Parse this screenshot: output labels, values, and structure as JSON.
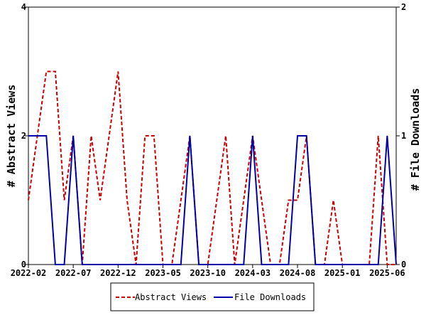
{
  "chart_data": {
    "type": "line",
    "x_tick_labels": [
      "2022-02",
      "2022-07",
      "2022-12",
      "2023-05",
      "2023-10",
      "2024-03",
      "2024-08",
      "2025-01",
      "2025-06"
    ],
    "x": [
      "2022-02",
      "2022-03",
      "2022-04",
      "2022-05",
      "2022-06",
      "2022-07",
      "2022-08",
      "2022-09",
      "2022-10",
      "2022-11",
      "2022-12",
      "2023-01",
      "2023-02",
      "2023-03",
      "2023-04",
      "2023-05",
      "2023-06",
      "2023-07",
      "2023-08",
      "2023-09",
      "2023-10",
      "2023-11",
      "2023-12",
      "2024-01",
      "2024-02",
      "2024-03",
      "2024-04",
      "2024-05",
      "2024-06",
      "2024-07",
      "2024-08",
      "2024-09",
      "2024-10",
      "2024-11",
      "2024-12",
      "2025-01",
      "2025-02",
      "2025-03",
      "2025-04",
      "2025-05",
      "2025-06",
      "2025-07"
    ],
    "series": [
      {
        "name": "Abstract Views",
        "axis": "left",
        "color": "#cc0000",
        "style": "dashed",
        "values": [
          1,
          2,
          3,
          3,
          1,
          2,
          0,
          2,
          1,
          2,
          3,
          1,
          0,
          2,
          2,
          0,
          0,
          1,
          2,
          0,
          0,
          1,
          2,
          0,
          1,
          2,
          1,
          0,
          0,
          1,
          1,
          2,
          0,
          0,
          1,
          0,
          0,
          0,
          0,
          2,
          0,
          0
        ]
      },
      {
        "name": "File Downloads",
        "axis": "right",
        "color": "#0000aa",
        "style": "solid",
        "values": [
          1,
          1,
          1,
          0,
          0,
          1,
          0,
          0,
          0,
          0,
          0,
          0,
          0,
          0,
          0,
          0,
          0,
          0,
          1,
          0,
          0,
          0,
          0,
          0,
          0,
          1,
          0,
          0,
          0,
          0,
          1,
          1,
          0,
          0,
          0,
          0,
          0,
          0,
          0,
          0,
          1,
          0
        ]
      }
    ],
    "ylabel_left": "# Abstract Views",
    "ylabel_right": "# File Downloads",
    "ylim_left": [
      0,
      4
    ],
    "ylim_right": [
      0,
      2
    ],
    "yticks_left": [
      "0",
      "2",
      "4"
    ],
    "yticks_right": [
      "0",
      "1",
      "2"
    ],
    "legend": {
      "placement": "bottom-center",
      "entries": [
        "Abstract Views",
        "File Downloads"
      ]
    },
    "grid": false
  }
}
